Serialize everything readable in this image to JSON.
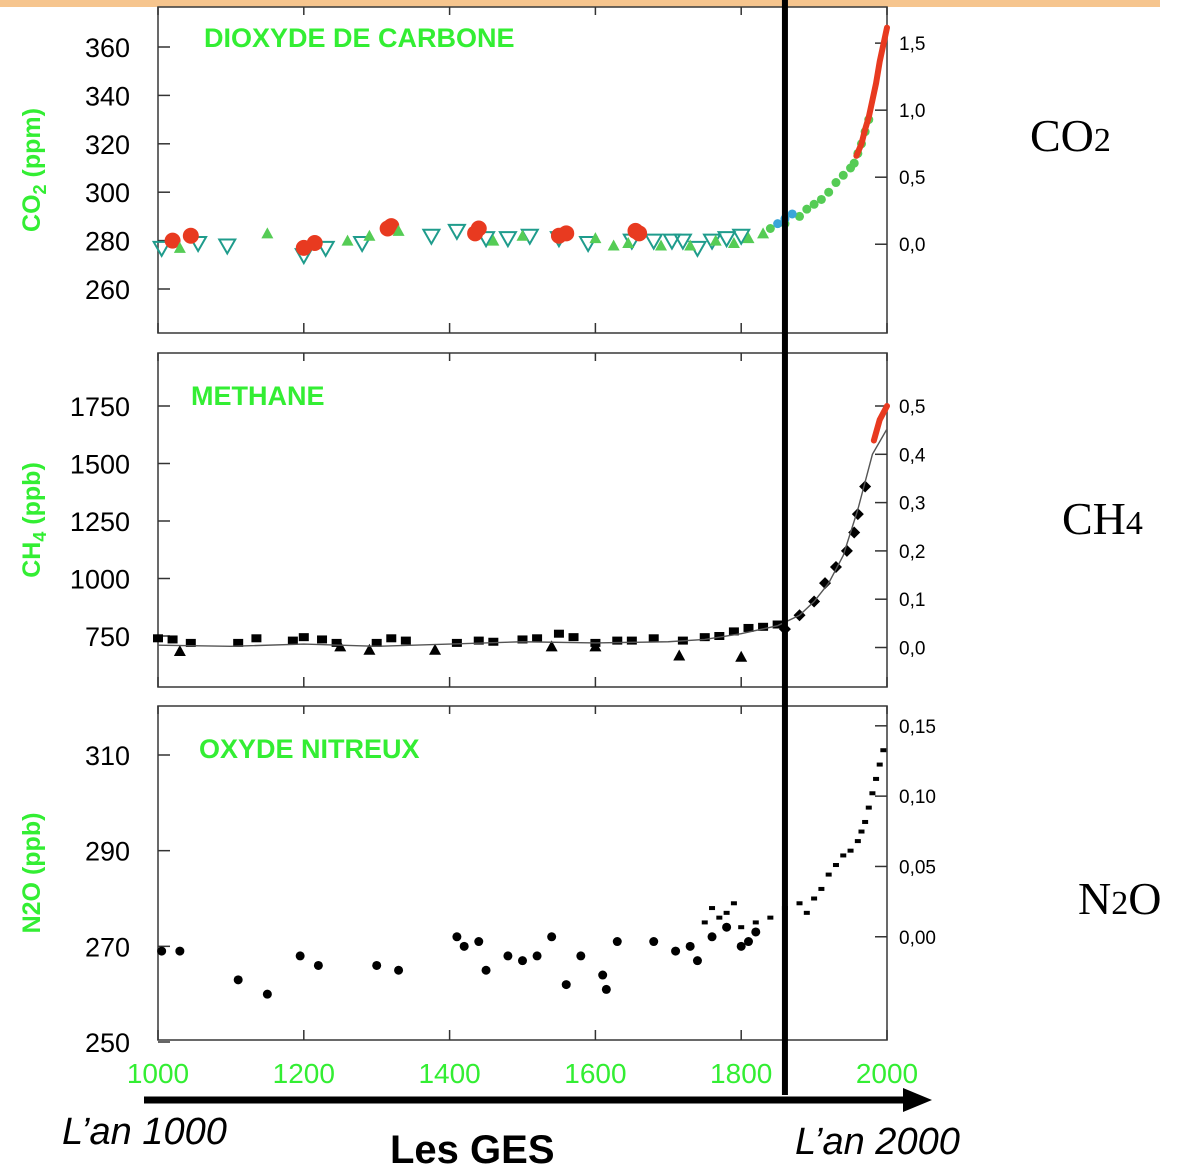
{
  "colors": {
    "green": "#33ee33",
    "red": "#e83a20",
    "orange_bar": "#f6c58e",
    "teal": "#1f9c8c",
    "cyan": "#3aa6d8",
    "black": "#000000"
  },
  "gas_labels": {
    "co2_main": "CO",
    "co2_sub": "2",
    "ch4_main": "CH",
    "ch4_sub": "4",
    "n2o_a": "N",
    "n2o_sub": "2",
    "n2o_b": "O"
  },
  "captions": {
    "left": "L’an 1000",
    "right": "L’an 2000",
    "center": "Les GES"
  },
  "chart_data": [
    {
      "type": "scatter",
      "title": "DIOXYDE DE CARBONE",
      "ylabel_main": "CO",
      "ylabel_sub": "2",
      "ylabel_unit": " (ppm)",
      "ylim": [
        250,
        370
      ],
      "yticks": [
        260,
        280,
        300,
        320,
        340,
        360
      ],
      "ytick_labels": [
        "260",
        "280",
        "300",
        "320",
        "340",
        "360"
      ],
      "y2ticks": [
        0.0,
        0.5,
        1.0,
        1.5
      ],
      "y2tick_labels": [
        "0,0",
        "0,5",
        "1,0",
        "1,5"
      ],
      "y2_at_primary": [
        278.5,
        306.2,
        333.9,
        361.6
      ],
      "xlim": [
        1000,
        2000
      ],
      "series": [
        {
          "marker": "triangle-down-open",
          "color": "#1f9c8c",
          "x": [
            1005,
            1055,
            1095,
            1200,
            1230,
            1280,
            1375,
            1410,
            1450,
            1480,
            1510,
            1550,
            1590,
            1650,
            1680,
            1705,
            1720,
            1740,
            1760,
            1780,
            1800
          ],
          "y": [
            277,
            279,
            278,
            274,
            277,
            279,
            282,
            284,
            281,
            281,
            282,
            281,
            279,
            280,
            280,
            280,
            280,
            277,
            280,
            281,
            282
          ]
        },
        {
          "marker": "circle",
          "color": "#e83a20",
          "x": [
            1020,
            1045,
            1200,
            1215,
            1315,
            1320,
            1435,
            1440,
            1550,
            1560,
            1655,
            1660
          ],
          "y": [
            280,
            282,
            277,
            279,
            285,
            286,
            283,
            285,
            282,
            283,
            284,
            283
          ]
        },
        {
          "marker": "triangle-up",
          "color": "#55cc55",
          "x": [
            1030,
            1150,
            1260,
            1290,
            1330,
            1460,
            1500,
            1600,
            1625,
            1645,
            1690,
            1730,
            1765,
            1790,
            1810,
            1830
          ],
          "y": [
            277,
            283,
            280,
            282,
            284,
            280,
            282,
            281,
            278,
            279,
            278,
            278,
            280,
            279,
            281,
            283
          ]
        },
        {
          "marker": "dot",
          "color": "#55cc55",
          "x": [
            1840,
            1860,
            1880,
            1890,
            1900,
            1910,
            1920,
            1930,
            1940,
            1950,
            1955,
            1960,
            1965,
            1970,
            1975
          ],
          "y": [
            285,
            287,
            290,
            293,
            295,
            297,
            300,
            304,
            307,
            310,
            312,
            316,
            320,
            325,
            330
          ]
        },
        {
          "marker": "dot",
          "color": "#3aa6d8",
          "x": [
            1850,
            1860,
            1870
          ],
          "y": [
            287,
            289,
            291
          ]
        },
        {
          "marker": "line",
          "color": "#e83a20",
          "x": [
            1958,
            1965,
            1970,
            1975,
            1980,
            1985,
            1990,
            1995,
            2000
          ],
          "y": [
            315,
            320,
            326,
            331,
            338,
            345,
            354,
            361,
            368
          ]
        }
      ]
    },
    {
      "type": "scatter",
      "title": "METHANE",
      "ylabel_main": "CH",
      "ylabel_sub": "4",
      "ylabel_unit": " (ppb)",
      "ylim": [
        530,
        1790
      ],
      "yticks": [
        750,
        1000,
        1250,
        1500,
        1750
      ],
      "ytick_labels": [
        "750",
        "1000",
        "1250",
        "1500",
        "1750"
      ],
      "y2ticks": [
        0.0,
        0.1,
        0.2,
        0.3,
        0.4,
        0.5
      ],
      "y2tick_labels": [
        "0,0",
        "0,1",
        "0,2",
        "0,3",
        "0,4",
        "0,5"
      ],
      "y2_at_primary": [
        700,
        910,
        1120,
        1330,
        1540,
        1750
      ],
      "xlim": [
        1000,
        2000
      ],
      "series": [
        {
          "marker": "square",
          "color": "#000000",
          "x": [
            1000,
            1020,
            1045,
            1110,
            1135,
            1185,
            1200,
            1225,
            1245,
            1300,
            1320,
            1340,
            1410,
            1440,
            1460,
            1500,
            1520,
            1550,
            1570,
            1600,
            1630,
            1650,
            1680,
            1720,
            1750,
            1770,
            1790,
            1810,
            1830,
            1850
          ],
          "y": [
            740,
            735,
            720,
            720,
            740,
            730,
            745,
            735,
            720,
            720,
            740,
            730,
            720,
            730,
            725,
            735,
            740,
            760,
            745,
            720,
            730,
            730,
            740,
            730,
            745,
            750,
            770,
            785,
            790,
            800
          ]
        },
        {
          "marker": "triangle-up",
          "color": "#000000",
          "x": [
            1030,
            1250,
            1290,
            1380,
            1540,
            1600,
            1715,
            1800
          ],
          "y": [
            685,
            705,
            690,
            690,
            705,
            705,
            665,
            660
          ]
        },
        {
          "marker": "diamond",
          "color": "#000000",
          "x": [
            1860,
            1880,
            1900,
            1915,
            1930,
            1945,
            1955,
            1960,
            1970
          ],
          "y": [
            780,
            840,
            900,
            980,
            1050,
            1120,
            1200,
            1280,
            1400
          ]
        },
        {
          "marker": "line",
          "color": "#555555",
          "x": [
            1000,
            1100,
            1200,
            1300,
            1400,
            1500,
            1600,
            1700,
            1750,
            1800,
            1850,
            1880,
            1900,
            1920,
            1940,
            1960,
            1980,
            2000
          ],
          "y": [
            710,
            705,
            715,
            705,
            715,
            725,
            720,
            725,
            735,
            760,
            795,
            840,
            900,
            980,
            1100,
            1300,
            1540,
            1650
          ]
        },
        {
          "marker": "line",
          "color": "#e83a20",
          "x": [
            1982,
            1990,
            2000
          ],
          "y": [
            1600,
            1690,
            1750
          ]
        }
      ]
    },
    {
      "type": "scatter",
      "title": "OXYDE NITREUX",
      "ylabel_main": "N2O",
      "ylabel_sub": "",
      "ylabel_unit": "  (ppb)",
      "ylim": [
        250,
        318
      ],
      "yticks": [
        250,
        270,
        290,
        310
      ],
      "ytick_labels": [
        "250",
        "270",
        "290",
        "310"
      ],
      "y2ticks": [
        0.0,
        0.05,
        0.1,
        0.15
      ],
      "y2tick_labels": [
        "0,00",
        "0,05",
        "0,10",
        "0,15"
      ],
      "y2_at_primary": [
        272,
        286.7,
        301.4,
        316.1
      ],
      "xlim": [
        1000,
        2000
      ],
      "series": [
        {
          "marker": "dot",
          "color": "#000000",
          "x": [
            1005,
            1030,
            1110,
            1150,
            1195,
            1220,
            1300,
            1330,
            1410,
            1420,
            1440,
            1450,
            1480,
            1500,
            1520,
            1540,
            1560,
            1580,
            1610,
            1615,
            1630,
            1680,
            1710,
            1730,
            1740,
            1760,
            1780,
            1800,
            1810,
            1820
          ],
          "y": [
            269,
            269,
            263,
            260,
            268,
            266,
            266,
            265,
            272,
            270,
            271,
            265,
            268,
            267,
            268,
            272,
            262,
            268,
            264,
            261,
            271,
            271,
            269,
            270,
            267,
            272,
            274,
            270,
            271,
            273
          ]
        },
        {
          "marker": "dash",
          "color": "#000000",
          "x": [
            1750,
            1760,
            1770,
            1780,
            1790,
            1800,
            1820,
            1840,
            1860,
            1880,
            1890,
            1900,
            1910,
            1920,
            1930,
            1940,
            1950,
            1960,
            1965,
            1970,
            1975,
            1980,
            1985,
            1990,
            1995
          ],
          "y": [
            275,
            278,
            276,
            277,
            279,
            274,
            275,
            276,
            278,
            279,
            277,
            280,
            282,
            285,
            287,
            289,
            290,
            292,
            294,
            296,
            299,
            302,
            305,
            308,
            311
          ]
        }
      ]
    }
  ],
  "x_axis": {
    "tick_values": [
      1000,
      1200,
      1400,
      1600,
      1800,
      2000
    ],
    "tick_labels": [
      "1000",
      "1200",
      "1400",
      "1600",
      "1800",
      "2000"
    ],
    "vertical_marker_year": 1860
  }
}
